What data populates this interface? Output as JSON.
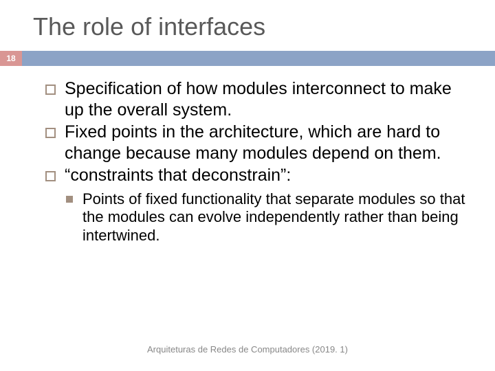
{
  "title": "The role of interfaces",
  "pageNumber": "18",
  "colors": {
    "titleText": "#595959",
    "badgeBg": "#d99694",
    "badgeText": "#ffffff",
    "barBg": "#8ca3c6",
    "bulletBorder": "#a28f80",
    "bodyText": "#000000",
    "footerText": "#878787",
    "background": "#ffffff"
  },
  "typography": {
    "titleFontSize": 36,
    "bodyFontSize": 25,
    "subFontSize": 22,
    "footerFontSize": 13,
    "fontFamily": "Arial"
  },
  "bullets": [
    "Specification of how modules interconnect to make up the overall system.",
    "Fixed points in the architecture, which are hard to change because many modules depend on them.",
    "“constraints that deconstrain”:"
  ],
  "subBullets": [
    "Points of fixed functionality that separate modules so that the modules can evolve independently rather than being intertwined."
  ],
  "footer": "Arquiteturas de Redes de Computadores  (2019. 1)"
}
